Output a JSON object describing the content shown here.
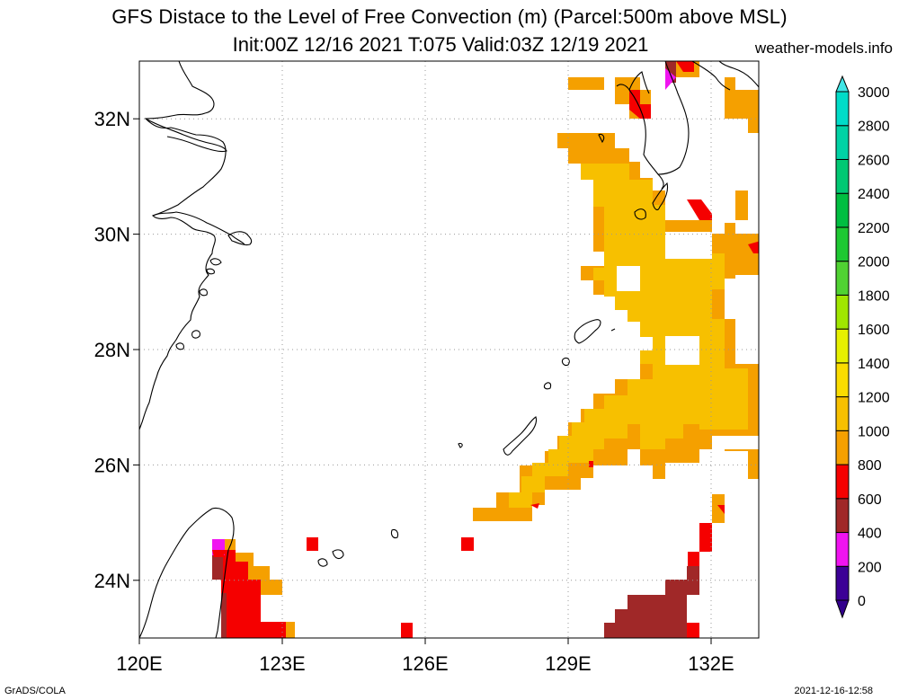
{
  "title": "GFS Distace to the Level of Free Convection (m) (Parcel:500m above MSL)",
  "subtitle": "Init:00Z 12/16 2021 T:075 Valid:03Z 12/19 2021",
  "credit": "weather-models.info",
  "footer": {
    "left": "GrADS/COLA",
    "right": "2021-12-16-12:58"
  },
  "map": {
    "lon_range": [
      120,
      133
    ],
    "lat_range": [
      23,
      33
    ],
    "lon_ticks": [
      {
        "value": 120,
        "label": "120E"
      },
      {
        "value": 123,
        "label": "123E"
      },
      {
        "value": 126,
        "label": "126E"
      },
      {
        "value": 129,
        "label": "129E"
      },
      {
        "value": 132,
        "label": "132E"
      }
    ],
    "lat_ticks": [
      {
        "value": 24,
        "label": "24N"
      },
      {
        "value": 26,
        "label": "26N"
      },
      {
        "value": 28,
        "label": "28N"
      },
      {
        "value": 30,
        "label": "30N"
      },
      {
        "value": 32,
        "label": "32N"
      }
    ],
    "grid": "dotted"
  },
  "colorbar": {
    "labels": [
      "0",
      "200",
      "400",
      "600",
      "800",
      "1000",
      "1200",
      "1400",
      "1600",
      "1800",
      "2000",
      "2200",
      "2400",
      "2600",
      "2800",
      "3000"
    ],
    "colors": [
      "#3c0096",
      "#f014f0",
      "#a02828",
      "#f50000",
      "#f5a000",
      "#f7c000",
      "#fadc00",
      "#e6f000",
      "#a0e600",
      "#50d232",
      "#1ec832",
      "#00be41",
      "#00c873",
      "#00d2a5",
      "#00dcc8",
      "#1ee6e6"
    ],
    "under_color": "#32008c",
    "over_color": "#40e6e6"
  },
  "field_colors": {
    "c2": "#a02828",
    "c3": "#f50000",
    "c4": "#f5a000",
    "c5": "#f7c000",
    "c1": "#f014f0"
  }
}
